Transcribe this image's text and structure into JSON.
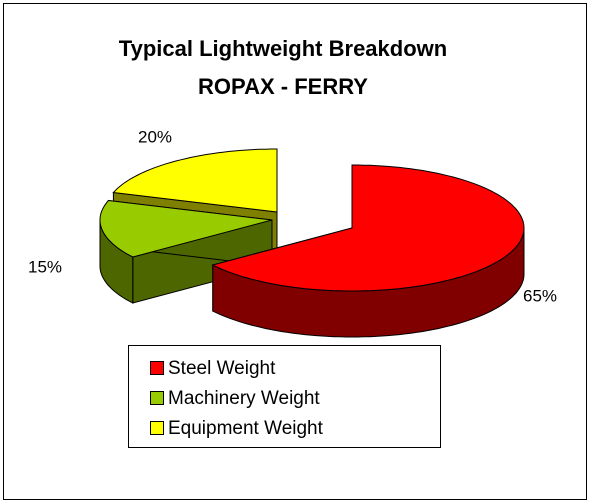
{
  "chart_data": {
    "type": "pie",
    "title": "Typical Lightweight Breakdown",
    "subtitle": "ROPAX - FERRY",
    "categories": [
      "Steel Weight",
      "Machinery Weight",
      "Equipment Weight"
    ],
    "values": [
      65,
      15,
      20
    ],
    "value_labels": [
      "65%",
      "15%",
      "20%"
    ],
    "colors": [
      "#ff0000",
      "#99cc00",
      "#ffff00"
    ],
    "side_colors": [
      "#800000",
      "#4d6600",
      "#808000"
    ],
    "legend": "bottom"
  }
}
